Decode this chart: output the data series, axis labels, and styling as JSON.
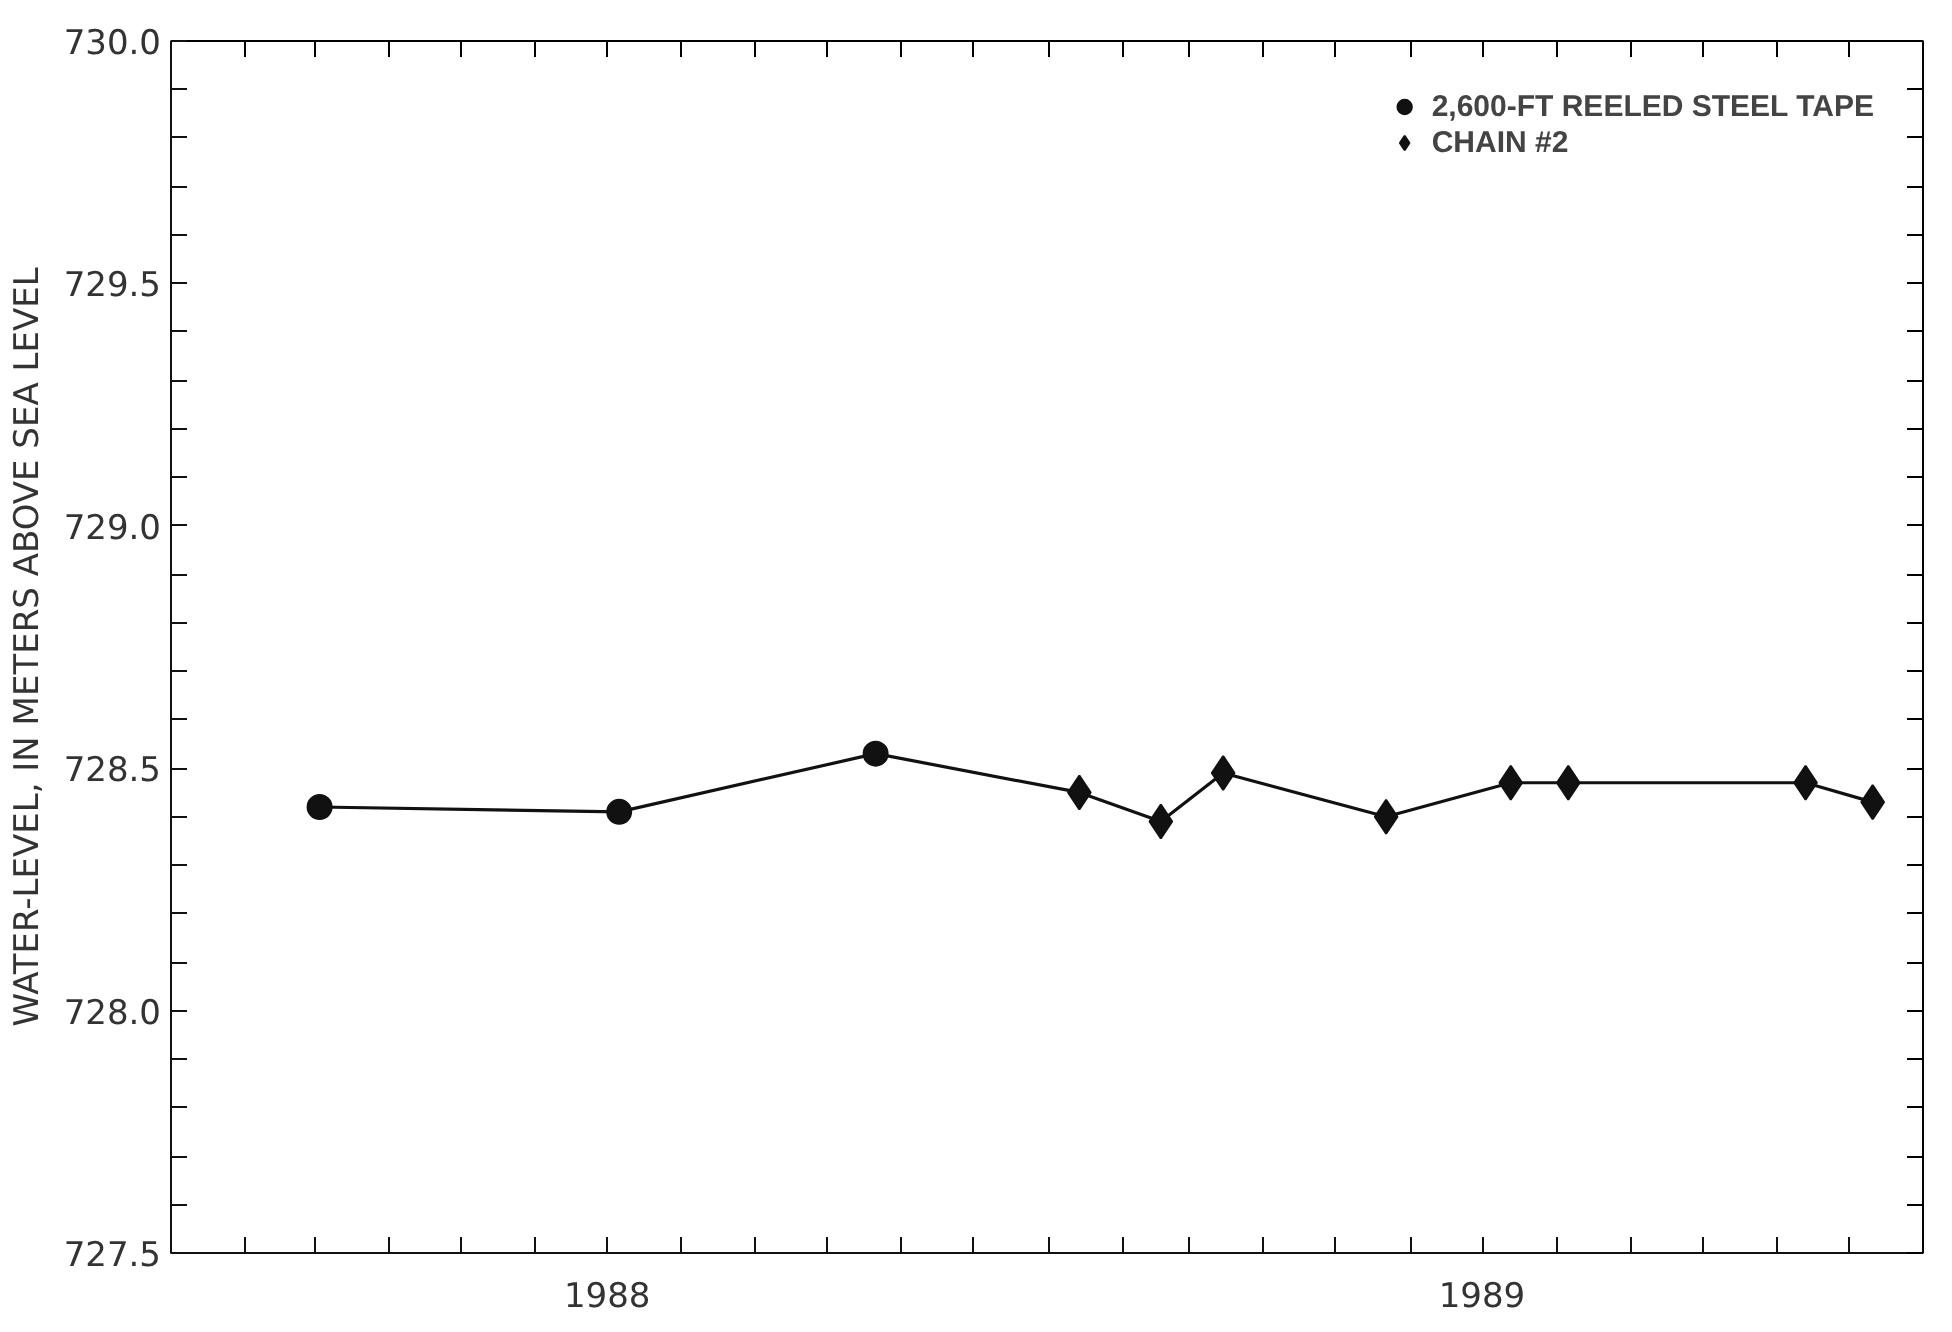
{
  "chart_data": {
    "type": "line",
    "ylabel": "WATER-LEVEL, IN METERS ABOVE SEA LEVEL",
    "ylim": [
      727.5,
      730.0
    ],
    "yticks": [
      {
        "value": 727.5,
        "label": "727.5"
      },
      {
        "value": 727.6,
        "label": null
      },
      {
        "value": 727.7,
        "label": null
      },
      {
        "value": 727.8,
        "label": null
      },
      {
        "value": 727.9,
        "label": null
      },
      {
        "value": 728.0,
        "label": "728.0"
      },
      {
        "value": 728.1,
        "label": null
      },
      {
        "value": 728.2,
        "label": null
      },
      {
        "value": 728.3,
        "label": null
      },
      {
        "value": 728.4,
        "label": null
      },
      {
        "value": 728.5,
        "label": "728.5"
      },
      {
        "value": 728.6,
        "label": null
      },
      {
        "value": 728.7,
        "label": null
      },
      {
        "value": 728.8,
        "label": null
      },
      {
        "value": 728.9,
        "label": null
      },
      {
        "value": 729.0,
        "label": "729.0"
      },
      {
        "value": 729.1,
        "label": null
      },
      {
        "value": 729.2,
        "label": null
      },
      {
        "value": 729.3,
        "label": null
      },
      {
        "value": 729.4,
        "label": null
      },
      {
        "value": 729.5,
        "label": "729.5"
      },
      {
        "value": 729.6,
        "label": null
      },
      {
        "value": 729.7,
        "label": null
      },
      {
        "value": 729.8,
        "label": null
      },
      {
        "value": 729.9,
        "label": null
      },
      {
        "value": 730.0,
        "label": "730.0"
      }
    ],
    "xlim": [
      "1988-01-01",
      "1990-01-01"
    ],
    "xticks": [
      {
        "value": "1988-02-01",
        "label": null
      },
      {
        "value": "1988-03-01",
        "label": null
      },
      {
        "value": "1988-04-01",
        "label": null
      },
      {
        "value": "1988-05-01",
        "label": null
      },
      {
        "value": "1988-06-01",
        "label": null
      },
      {
        "value": "1988-07-01",
        "label": "1988"
      },
      {
        "value": "1988-08-01",
        "label": null
      },
      {
        "value": "1988-09-01",
        "label": null
      },
      {
        "value": "1988-10-01",
        "label": null
      },
      {
        "value": "1988-11-01",
        "label": null
      },
      {
        "value": "1988-12-01",
        "label": null
      },
      {
        "value": "1989-01-01",
        "label": null
      },
      {
        "value": "1989-02-01",
        "label": null
      },
      {
        "value": "1989-03-01",
        "label": null
      },
      {
        "value": "1989-04-01",
        "label": null
      },
      {
        "value": "1989-05-01",
        "label": null
      },
      {
        "value": "1989-06-01",
        "label": null
      },
      {
        "value": "1989-07-01",
        "label": "1989"
      },
      {
        "value": "1989-08-01",
        "label": null
      },
      {
        "value": "1989-09-01",
        "label": null
      },
      {
        "value": "1989-10-01",
        "label": null
      },
      {
        "value": "1989-11-01",
        "label": null
      },
      {
        "value": "1989-12-01",
        "label": null
      }
    ],
    "grid": false,
    "legend": "top right",
    "series": [
      {
        "color": "#111111",
        "marker": "none",
        "x": [
          "1988-03-03",
          "1988-07-06",
          "1988-10-21",
          "1989-01-14",
          "1989-02-17",
          "1989-03-15",
          "1989-05-22",
          "1989-07-13",
          "1989-08-06",
          "1989-11-13",
          "1989-12-11"
        ],
        "values": [
          728.42,
          728.41,
          728.53,
          728.45,
          728.39,
          728.49,
          728.4,
          728.47,
          728.47,
          728.47,
          728.43
        ]
      },
      {
        "type": "scatter",
        "name": "2,600-FT REELED STEEL TAPE",
        "color": "#111111",
        "marker": "circle",
        "x": [
          "1988-03-03",
          "1988-07-06",
          "1988-10-21"
        ],
        "values": [
          728.42,
          728.41,
          728.53
        ]
      },
      {
        "type": "scatter",
        "name": "CHAIN #2",
        "color": "#111111",
        "marker": "diamond",
        "x": [
          "1989-01-14",
          "1989-02-17",
          "1989-03-15",
          "1989-05-22",
          "1989-07-13",
          "1989-08-06",
          "1989-11-13",
          "1989-12-11"
        ],
        "values": [
          728.45,
          728.39,
          728.49,
          728.4,
          728.47,
          728.47,
          728.47,
          728.43
        ]
      }
    ]
  }
}
